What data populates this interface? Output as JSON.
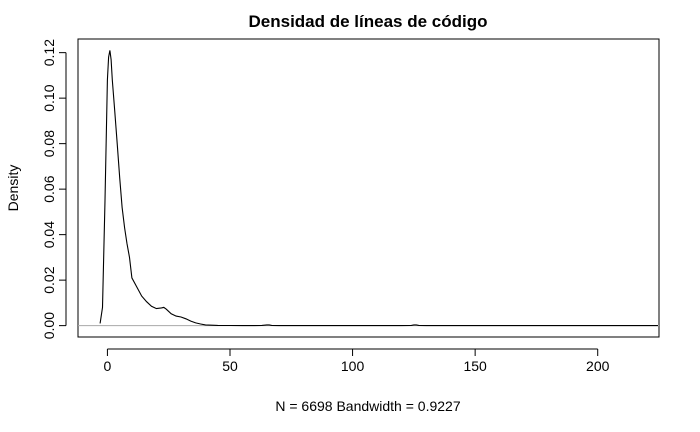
{
  "chart_data": {
    "type": "line",
    "title": "Densidad de líneas de código",
    "xlabel": "N = 6698   Bandwidth = 0.9227",
    "ylabel": "Density",
    "xlim": [
      -12,
      225
    ],
    "ylim": [
      -0.005,
      0.126
    ],
    "x_ticks": [
      0,
      50,
      100,
      150,
      200
    ],
    "y_ticks": [
      0.0,
      0.02,
      0.04,
      0.06,
      0.08,
      0.1,
      0.12
    ],
    "x_tick_labels": [
      "0",
      "50",
      "100",
      "150",
      "200"
    ],
    "y_tick_labels": [
      "0.00",
      "0.02",
      "0.04",
      "0.06",
      "0.08",
      "0.10",
      "0.12"
    ],
    "zero_line": true,
    "grid": false,
    "series": [
      {
        "name": "density",
        "x": [
          -3,
          -2,
          -1,
          0,
          0.5,
          1,
          1.5,
          2,
          3,
          4,
          5,
          6,
          7,
          8,
          9,
          10,
          12,
          14,
          16,
          18,
          20,
          22,
          23,
          24,
          26,
          28,
          30,
          32,
          34,
          36,
          38,
          40,
          45,
          50,
          55,
          60,
          63,
          65,
          66,
          67,
          70,
          80,
          100,
          120,
          124,
          125,
          126,
          127,
          130,
          150,
          175,
          200,
          225
        ],
        "y": [
          0.001,
          0.008,
          0.055,
          0.108,
          0.118,
          0.121,
          0.117,
          0.108,
          0.094,
          0.08,
          0.065,
          0.052,
          0.043,
          0.036,
          0.03,
          0.021,
          0.017,
          0.013,
          0.0105,
          0.0085,
          0.0075,
          0.0078,
          0.008,
          0.0072,
          0.0052,
          0.0042,
          0.0038,
          0.003,
          0.002,
          0.0012,
          0.0007,
          0.0003,
          0.0001,
          5e-05,
          3e-05,
          3e-05,
          0.0001,
          0.0003,
          0.0003,
          0.0001,
          0.0,
          0.0,
          0.0,
          0.0,
          0.0001,
          0.0003,
          0.0003,
          0.0001,
          0.0,
          0.0,
          0.0,
          0.0,
          0.0
        ]
      }
    ]
  }
}
